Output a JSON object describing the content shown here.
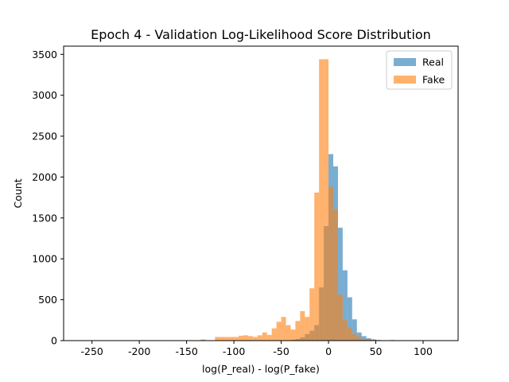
{
  "chart_data": {
    "type": "histogram",
    "title": "Epoch 4 - Validation Log-Likelihood Score Distribution",
    "xlabel": "log(P_real) - log(P_fake)",
    "ylabel": "Count",
    "xlim": [
      -280,
      137
    ],
    "ylim": [
      0,
      3600
    ],
    "xticks": [
      -250,
      -200,
      -150,
      -100,
      -50,
      0,
      50,
      100
    ],
    "yticks": [
      0,
      500,
      1000,
      1500,
      2000,
      2500,
      3000,
      3500
    ],
    "legend_position": "top-right",
    "grid": false,
    "series": [
      {
        "name": "Real",
        "color": "#1f77b4",
        "opacity": 0.6,
        "bin_width": 5,
        "bins": [
          {
            "x0": -45,
            "count": 5
          },
          {
            "x0": -40,
            "count": 10
          },
          {
            "x0": -35,
            "count": 20
          },
          {
            "x0": -30,
            "count": 40
          },
          {
            "x0": -25,
            "count": 80
          },
          {
            "x0": -20,
            "count": 120
          },
          {
            "x0": -15,
            "count": 190
          },
          {
            "x0": -10,
            "count": 650
          },
          {
            "x0": -5,
            "count": 1400
          },
          {
            "x0": 0,
            "count": 2280
          },
          {
            "x0": 5,
            "count": 2130
          },
          {
            "x0": 10,
            "count": 1380
          },
          {
            "x0": 15,
            "count": 860
          },
          {
            "x0": 20,
            "count": 530
          },
          {
            "x0": 25,
            "count": 260
          },
          {
            "x0": 30,
            "count": 100
          },
          {
            "x0": 35,
            "count": 55
          },
          {
            "x0": 40,
            "count": 30
          },
          {
            "x0": 45,
            "count": 15
          },
          {
            "x0": 50,
            "count": 8
          }
        ]
      },
      {
        "name": "Fake",
        "color": "#ff7f0e",
        "opacity": 0.6,
        "bin_width": 5,
        "bins": [
          {
            "x0": -135,
            "count": 15
          },
          {
            "x0": -120,
            "count": 45
          },
          {
            "x0": -115,
            "count": 45
          },
          {
            "x0": -110,
            "count": 45
          },
          {
            "x0": -105,
            "count": 45
          },
          {
            "x0": -100,
            "count": 45
          },
          {
            "x0": -95,
            "count": 60
          },
          {
            "x0": -90,
            "count": 65
          },
          {
            "x0": -85,
            "count": 55
          },
          {
            "x0": -80,
            "count": 45
          },
          {
            "x0": -75,
            "count": 65
          },
          {
            "x0": -70,
            "count": 100
          },
          {
            "x0": -65,
            "count": 70
          },
          {
            "x0": -60,
            "count": 150
          },
          {
            "x0": -55,
            "count": 230
          },
          {
            "x0": -50,
            "count": 290
          },
          {
            "x0": -45,
            "count": 190
          },
          {
            "x0": -40,
            "count": 135
          },
          {
            "x0": -35,
            "count": 240
          },
          {
            "x0": -30,
            "count": 360
          },
          {
            "x0": -25,
            "count": 290
          },
          {
            "x0": -20,
            "count": 640
          },
          {
            "x0": -15,
            "count": 1810
          },
          {
            "x0": -10,
            "count": 3440
          },
          {
            "x0": -5,
            "count": 3440
          },
          {
            "x0": 0,
            "count": 1880
          },
          {
            "x0": 5,
            "count": 1600
          },
          {
            "x0": 10,
            "count": 560
          },
          {
            "x0": 15,
            "count": 250
          },
          {
            "x0": 20,
            "count": 160
          },
          {
            "x0": 25,
            "count": 80
          },
          {
            "x0": 30,
            "count": 50
          },
          {
            "x0": 35,
            "count": 20
          },
          {
            "x0": 40,
            "count": 20
          },
          {
            "x0": 45,
            "count": 15
          },
          {
            "x0": 65,
            "count": 8
          }
        ]
      }
    ]
  }
}
